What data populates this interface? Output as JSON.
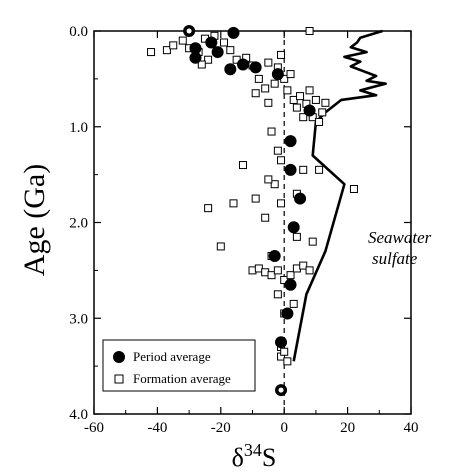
{
  "chart_data": {
    "type": "scatter",
    "x_axis": {
      "label_main": "δ",
      "label_sup": "34",
      "label_end": "S",
      "range": [
        -60,
        40
      ],
      "ticks": [
        -60,
        -40,
        -20,
        0,
        20,
        40
      ],
      "tick_labels": [
        "-60",
        "-40",
        "-20",
        "0",
        "20",
        "40"
      ]
    },
    "y_axis": {
      "label": "Age (Ga)",
      "range": [
        0.0,
        4.0
      ],
      "inverted": true,
      "ticks": [
        0.0,
        1.0,
        2.0,
        3.0,
        4.0
      ],
      "tick_labels": [
        "0.0",
        "1.0",
        "2.0",
        "3.0",
        "4.0"
      ]
    },
    "reference_line": {
      "x": 0,
      "style": "dashed"
    },
    "legend": {
      "placement": "bottom-left",
      "entries": [
        {
          "label": "Period average",
          "marker": "filled-circle"
        },
        {
          "label": "Formation average",
          "marker": "open-square"
        }
      ]
    },
    "annotation": [
      "Seawater",
      "sulfate"
    ],
    "series": [
      {
        "name": "Seawater sulfate",
        "kind": "line",
        "points": [
          [
            3,
            3.45
          ],
          [
            7,
            2.75
          ],
          [
            13,
            2.3
          ],
          [
            19,
            1.6
          ],
          [
            9,
            1.3
          ],
          [
            10,
            0.95
          ],
          [
            13,
            0.85
          ],
          [
            18,
            0.72
          ],
          [
            29,
            0.67
          ],
          [
            24,
            0.62
          ],
          [
            32,
            0.55
          ],
          [
            26,
            0.52
          ],
          [
            29,
            0.47
          ],
          [
            25,
            0.42
          ],
          [
            21,
            0.37
          ],
          [
            24,
            0.32
          ],
          [
            19,
            0.27
          ],
          [
            26,
            0.22
          ],
          [
            21,
            0.17
          ],
          [
            23,
            0.12
          ],
          [
            24,
            0.07
          ],
          [
            28,
            0.03
          ],
          [
            31,
            0.0
          ]
        ]
      },
      {
        "name": "Period average",
        "kind": "filled-circle",
        "points": [
          [
            -30,
            0.0
          ],
          [
            -16,
            0.02
          ],
          [
            -23,
            0.12
          ],
          [
            -28,
            0.18
          ],
          [
            -21,
            0.22
          ],
          [
            -28,
            0.28
          ],
          [
            -13,
            0.35
          ],
          [
            -17,
            0.4
          ],
          [
            -9,
            0.38
          ],
          [
            -2,
            0.45
          ],
          [
            8,
            0.83
          ],
          [
            2,
            1.15
          ],
          [
            2,
            1.45
          ],
          [
            5,
            1.75
          ],
          [
            3,
            2.05
          ],
          [
            -3,
            2.35
          ],
          [
            2,
            2.65
          ],
          [
            1,
            2.95
          ],
          [
            -1,
            3.25
          ],
          [
            -1,
            3.75
          ]
        ]
      },
      {
        "name": "Formation average",
        "kind": "open-square",
        "points": [
          [
            -42,
            0.22
          ],
          [
            -37,
            0.2
          ],
          [
            -35,
            0.15
          ],
          [
            -32,
            0.1
          ],
          [
            -30,
            0.18
          ],
          [
            -27,
            0.22
          ],
          [
            -25,
            0.08
          ],
          [
            -24,
            0.3
          ],
          [
            -26,
            0.35
          ],
          [
            -22,
            0.05
          ],
          [
            -19,
            0.12
          ],
          [
            -17,
            0.2
          ],
          [
            -15,
            0.3
          ],
          [
            -12,
            0.28
          ],
          [
            -10,
            0.36
          ],
          [
            -8,
            0.5
          ],
          [
            -6,
            0.6
          ],
          [
            -5,
            0.33
          ],
          [
            -3,
            0.55
          ],
          [
            -2,
            0.38
          ],
          [
            -1,
            0.25
          ],
          [
            0,
            0.5
          ],
          [
            1,
            0.62
          ],
          [
            2,
            0.45
          ],
          [
            3,
            0.72
          ],
          [
            4,
            0.8
          ],
          [
            5,
            0.68
          ],
          [
            6,
            0.9
          ],
          [
            7,
            0.76
          ],
          [
            8,
            0.62
          ],
          [
            9,
            0.9
          ],
          [
            10,
            0.72
          ],
          [
            11,
            0.95
          ],
          [
            12,
            0.85
          ],
          [
            13,
            0.75
          ],
          [
            8,
            0.0
          ],
          [
            -5,
            0.75
          ],
          [
            -9,
            0.65
          ],
          [
            -4,
            1.05
          ],
          [
            -2,
            1.25
          ],
          [
            -1,
            1.35
          ],
          [
            -3,
            1.6
          ],
          [
            -13,
            1.4
          ],
          [
            -24,
            1.85
          ],
          [
            -16,
            1.8
          ],
          [
            -9,
            1.75
          ],
          [
            -5,
            1.55
          ],
          [
            -6,
            1.95
          ],
          [
            -1,
            1.8
          ],
          [
            4,
            1.7
          ],
          [
            6,
            1.45
          ],
          [
            11,
            1.45
          ],
          [
            22,
            1.65
          ],
          [
            -20,
            2.25
          ],
          [
            -4,
            2.35
          ],
          [
            4,
            2.15
          ],
          [
            9,
            2.2
          ],
          [
            -10,
            2.5
          ],
          [
            -8,
            2.48
          ],
          [
            -6,
            2.52
          ],
          [
            -4,
            2.55
          ],
          [
            -2,
            2.5
          ],
          [
            0,
            2.6
          ],
          [
            2,
            2.55
          ],
          [
            4,
            2.48
          ],
          [
            6,
            2.45
          ],
          [
            8,
            2.5
          ],
          [
            3,
            2.85
          ],
          [
            -2,
            2.75
          ],
          [
            0,
            2.95
          ],
          [
            -1,
            3.3
          ],
          [
            -1,
            3.4
          ],
          [
            0,
            3.35
          ],
          [
            1,
            3.45
          ],
          [
            -1,
            3.75
          ]
        ]
      }
    ]
  }
}
